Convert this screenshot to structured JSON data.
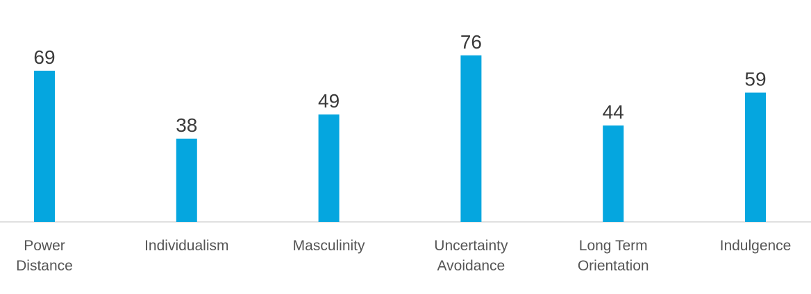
{
  "chart_data": {
    "type": "bar",
    "categories": [
      [
        "Power",
        "Distance"
      ],
      [
        "Individualism"
      ],
      [
        "Masculinity"
      ],
      [
        "Uncertainty",
        "Avoidance"
      ],
      [
        "Long Term",
        "Orientation"
      ],
      [
        "Indulgence"
      ]
    ],
    "values": [
      69,
      38,
      49,
      76,
      44,
      59
    ],
    "data_labels": [
      "69",
      "38",
      "49",
      "76",
      "44",
      "59"
    ],
    "ylim": [
      0,
      100
    ],
    "grid": false,
    "legend": "none",
    "colors": {
      "bar": "#05a6df",
      "axis": "#d6d6d6"
    }
  }
}
